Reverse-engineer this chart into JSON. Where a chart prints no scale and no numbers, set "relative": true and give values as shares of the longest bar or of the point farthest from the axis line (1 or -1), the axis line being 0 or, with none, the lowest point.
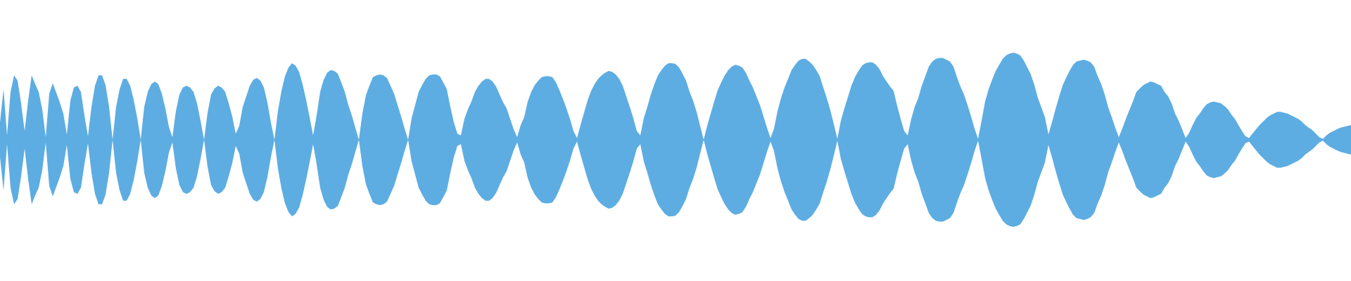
{
  "chart_data": {
    "type": "area",
    "relative": true,
    "categories": [
      null,
      null,
      null,
      null,
      null,
      null,
      null,
      null,
      null,
      null,
      null,
      null,
      null,
      null,
      null,
      null,
      null,
      null,
      null,
      null,
      null,
      null,
      null,
      null,
      null,
      null,
      null,
      null,
      null,
      null,
      null,
      null,
      null,
      null,
      null,
      null,
      null,
      null,
      null,
      null,
      null,
      null,
      null,
      null,
      null,
      null,
      null,
      null,
      null,
      null,
      null,
      null,
      null,
      null,
      null,
      null,
      null,
      null,
      null,
      null,
      null,
      null,
      null,
      null,
      null,
      null,
      null,
      null,
      null,
      null,
      null,
      null,
      null,
      null,
      null,
      null,
      null,
      null,
      null,
      null,
      null,
      null,
      null,
      null,
      null,
      null,
      null,
      null,
      null,
      null,
      null,
      null,
      null,
      null,
      null,
      null,
      null,
      null,
      null,
      null,
      null,
      null,
      null,
      null,
      null,
      null,
      null,
      null,
      null,
      null,
      null,
      null,
      null,
      null,
      null,
      null,
      null,
      null,
      null,
      null,
      null,
      null,
      null,
      null,
      null,
      null,
      null,
      null,
      null,
      null,
      null,
      null,
      null,
      null,
      null,
      null,
      null,
      null,
      null,
      null,
      null,
      null,
      null,
      null,
      null,
      null,
      null,
      null,
      null,
      null,
      null,
      null,
      null,
      null,
      null,
      null,
      null,
      null,
      null,
      null,
      null,
      null,
      null,
      null,
      null,
      null,
      null,
      null,
      null,
      null,
      null,
      null,
      null,
      null,
      null,
      null,
      null,
      null,
      null,
      null,
      null,
      null,
      null,
      null,
      null,
      null,
      null,
      null,
      null,
      null,
      null,
      null,
      null,
      null,
      null,
      null,
      null,
      null,
      null,
      null,
      null,
      null,
      null,
      null,
      null,
      null,
      null,
      null,
      null,
      null,
      null,
      null,
      null,
      null,
      null,
      null,
      null,
      null,
      null,
      null,
      null,
      null,
      null,
      null,
      null,
      null,
      null,
      null,
      null,
      null,
      null,
      null,
      null,
      null,
      null,
      null,
      null,
      null,
      null,
      null,
      null,
      null,
      null,
      null,
      null,
      null,
      null,
      null,
      null,
      null,
      null,
      null,
      null,
      null,
      null,
      null,
      null,
      null,
      null,
      null,
      null,
      null,
      null,
      null,
      null,
      null,
      null,
      null,
      null,
      null,
      null,
      null,
      null,
      null,
      null,
      null,
      null,
      null,
      null,
      null,
      null,
      null,
      null,
      null,
      null,
      null,
      null,
      null,
      null,
      null,
      null,
      null,
      null,
      null,
      null,
      null,
      null,
      null,
      null,
      null,
      null,
      null,
      null,
      null,
      null,
      null,
      null,
      null,
      null,
      null,
      null,
      null,
      null,
      null,
      null,
      null,
      null,
      null,
      null,
      null,
      null,
      null,
      null,
      null,
      null,
      null,
      null,
      null,
      null,
      null,
      null,
      null,
      null,
      null,
      null,
      null,
      null,
      null,
      null,
      null,
      null,
      null,
      null,
      null,
      null,
      null,
      null,
      null,
      null,
      null,
      null,
      null,
      null,
      null,
      null,
      null,
      null,
      null,
      null,
      null,
      null,
      null,
      null,
      null,
      null,
      null,
      null,
      null,
      null,
      null,
      null,
      null,
      null,
      null,
      null,
      null,
      null,
      null,
      null,
      null,
      null,
      null,
      null,
      null,
      null
    ],
    "series": [
      {
        "color": "#5dade2",
        "values": [
          0.2,
          0.58,
          0.05,
          0.55,
          0.74,
          0.68,
          0.42,
          0.1,
          0.45,
          0.74,
          0.64,
          0.55,
          0.35,
          0.03,
          0.53,
          0.65,
          0.54,
          0.43,
          0.3,
          0.06,
          0.45,
          0.6,
          0.62,
          0.55,
          0.28,
          0.04,
          0.38,
          0.62,
          0.74,
          0.74,
          0.63,
          0.38,
          0,
          0.38,
          0.58,
          0.7,
          0.7,
          0.62,
          0.46,
          0.25,
          0,
          0.38,
          0.55,
          0.64,
          0.67,
          0.64,
          0.53,
          0.36,
          0.15,
          0.03,
          0.33,
          0.52,
          0.6,
          0.62,
          0.6,
          0.55,
          0.42,
          0.22,
          0,
          0.31,
          0.52,
          0.59,
          0.62,
          0.6,
          0.55,
          0.42,
          0.27,
          0.07,
          0.16,
          0.38,
          0.5,
          0.62,
          0.69,
          0.71,
          0.68,
          0.6,
          0.43,
          0.2,
          0,
          0.33,
          0.56,
          0.73,
          0.83,
          0.88,
          0.85,
          0.78,
          0.64,
          0.46,
          0.26,
          0.05,
          0.28,
          0.55,
          0.69,
          0.77,
          0.8,
          0.79,
          0.76,
          0.66,
          0.55,
          0.4,
          0.28,
          0.14,
          0,
          0.3,
          0.51,
          0.62,
          0.72,
          0.74,
          0.75,
          0.74,
          0.71,
          0.62,
          0.53,
          0.4,
          0.27,
          0.13,
          0,
          0.25,
          0.4,
          0.55,
          0.63,
          0.7,
          0.74,
          0.75,
          0.75,
          0.73,
          0.66,
          0.58,
          0.38,
          0.2,
          0.07,
          0.05,
          0.24,
          0.35,
          0.44,
          0.55,
          0.62,
          0.67,
          0.7,
          0.7,
          0.67,
          0.61,
          0.52,
          0.43,
          0.36,
          0.24,
          0.12,
          0.03,
          0.17,
          0.26,
          0.44,
          0.55,
          0.63,
          0.68,
          0.72,
          0.73,
          0.73,
          0.72,
          0.66,
          0.57,
          0.47,
          0.36,
          0.24,
          0.1,
          0.02,
          0.17,
          0.31,
          0.45,
          0.56,
          0.64,
          0.7,
          0.74,
          0.77,
          0.79,
          0.78,
          0.75,
          0.7,
          0.62,
          0.5,
          0.38,
          0.25,
          0.1,
          0.05,
          0.25,
          0.38,
          0.52,
          0.64,
          0.74,
          0.8,
          0.85,
          0.88,
          0.88,
          0.87,
          0.83,
          0.76,
          0.68,
          0.55,
          0.45,
          0.32,
          0.16,
          0,
          0.16,
          0.3,
          0.44,
          0.57,
          0.66,
          0.74,
          0.8,
          0.84,
          0.86,
          0.85,
          0.83,
          0.77,
          0.68,
          0.6,
          0.5,
          0.4,
          0.27,
          0.14,
          0.02,
          0.13,
          0.33,
          0.48,
          0.6,
          0.7,
          0.8,
          0.86,
          0.91,
          0.93,
          0.93,
          0.9,
          0.86,
          0.8,
          0.73,
          0.6,
          0.48,
          0.34,
          0.18,
          0.01,
          0.22,
          0.36,
          0.49,
          0.62,
          0.72,
          0.79,
          0.85,
          0.88,
          0.89,
          0.89,
          0.86,
          0.81,
          0.73,
          0.67,
          0.61,
          0.56,
          0.39,
          0.24,
          0.1,
          0.05,
          0.24,
          0.38,
          0.48,
          0.62,
          0.73,
          0.84,
          0.9,
          0.93,
          0.94,
          0.94,
          0.92,
          0.9,
          0.84,
          0.72,
          0.61,
          0.52,
          0.4,
          0.27,
          0.13,
          0.01,
          0.22,
          0.44,
          0.58,
          0.69,
          0.79,
          0.86,
          0.93,
          0.97,
          0.99,
          1,
          0.99,
          0.97,
          0.91,
          0.83,
          0.75,
          0.63,
          0.48,
          0.37,
          0.26,
          0.06,
          0.2,
          0.35,
          0.49,
          0.62,
          0.71,
          0.79,
          0.86,
          0.9,
          0.91,
          0.92,
          0.91,
          0.89,
          0.84,
          0.73,
          0.64,
          0.52,
          0.37,
          0.26,
          0.14,
          0.03,
          0.13,
          0.24,
          0.34,
          0.44,
          0.55,
          0.59,
          0.63,
          0.65,
          0.67,
          0.66,
          0.64,
          0.62,
          0.55,
          0.5,
          0.42,
          0.3,
          0.22,
          0.12,
          0.02,
          0.08,
          0.17,
          0.25,
          0.3,
          0.36,
          0.41,
          0.43,
          0.44,
          0.43,
          0.42,
          0.39,
          0.35,
          0.29,
          0.24,
          0.17,
          0.1,
          0.04,
          0.02,
          0.07,
          0.12,
          0.17,
          0.21,
          0.25,
          0.28,
          0.3,
          0.32,
          0.32,
          0.31,
          0.3,
          0.28,
          0.26,
          0.24,
          0.21,
          0.17,
          0.14,
          0.11,
          0.07,
          0.03,
          0.01,
          0.05,
          0.08,
          0.1,
          0.12,
          0.14,
          0.15,
          0.16,
          0.17
        ]
      },
      {
        "color": "#5dade2",
        "values": [
          -0.2,
          -0.58,
          -0.05,
          -0.55,
          -0.74,
          -0.68,
          -0.42,
          -0.1,
          -0.45,
          -0.74,
          -0.64,
          -0.55,
          -0.35,
          -0.03,
          -0.53,
          -0.65,
          -0.54,
          -0.43,
          -0.3,
          -0.06,
          -0.45,
          -0.6,
          -0.62,
          -0.55,
          -0.28,
          -0.04,
          -0.38,
          -0.62,
          -0.74,
          -0.74,
          -0.63,
          -0.38,
          0,
          -0.38,
          -0.58,
          -0.7,
          -0.7,
          -0.62,
          -0.46,
          -0.25,
          0,
          -0.38,
          -0.55,
          -0.64,
          -0.67,
          -0.64,
          -0.53,
          -0.36,
          -0.15,
          -0.03,
          -0.33,
          -0.52,
          -0.6,
          -0.62,
          -0.6,
          -0.55,
          -0.42,
          -0.22,
          0,
          -0.31,
          -0.52,
          -0.59,
          -0.62,
          -0.6,
          -0.55,
          -0.42,
          -0.27,
          -0.07,
          -0.16,
          -0.38,
          -0.5,
          -0.62,
          -0.69,
          -0.71,
          -0.68,
          -0.6,
          -0.43,
          -0.2,
          0,
          -0.33,
          -0.56,
          -0.73,
          -0.83,
          -0.88,
          -0.85,
          -0.78,
          -0.64,
          -0.46,
          -0.26,
          -0.05,
          -0.28,
          -0.55,
          -0.69,
          -0.77,
          -0.8,
          -0.79,
          -0.76,
          -0.66,
          -0.55,
          -0.4,
          -0.28,
          -0.14,
          0,
          -0.3,
          -0.51,
          -0.62,
          -0.72,
          -0.74,
          -0.75,
          -0.74,
          -0.71,
          -0.62,
          -0.53,
          -0.4,
          -0.27,
          -0.13,
          0,
          -0.25,
          -0.4,
          -0.55,
          -0.63,
          -0.7,
          -0.74,
          -0.75,
          -0.75,
          -0.73,
          -0.66,
          -0.58,
          -0.38,
          -0.2,
          -0.07,
          -0.05,
          -0.24,
          -0.35,
          -0.44,
          -0.55,
          -0.62,
          -0.67,
          -0.7,
          -0.7,
          -0.67,
          -0.61,
          -0.52,
          -0.43,
          -0.36,
          -0.24,
          -0.12,
          -0.03,
          -0.17,
          -0.26,
          -0.44,
          -0.55,
          -0.63,
          -0.68,
          -0.72,
          -0.73,
          -0.73,
          -0.72,
          -0.66,
          -0.57,
          -0.47,
          -0.36,
          -0.24,
          -0.1,
          -0.02,
          -0.17,
          -0.31,
          -0.45,
          -0.56,
          -0.64,
          -0.7,
          -0.74,
          -0.77,
          -0.79,
          -0.78,
          -0.75,
          -0.7,
          -0.62,
          -0.5,
          -0.38,
          -0.25,
          -0.1,
          -0.05,
          -0.25,
          -0.38,
          -0.52,
          -0.64,
          -0.74,
          -0.8,
          -0.85,
          -0.88,
          -0.88,
          -0.87,
          -0.83,
          -0.76,
          -0.68,
          -0.55,
          -0.45,
          -0.32,
          -0.16,
          0,
          -0.16,
          -0.3,
          -0.44,
          -0.57,
          -0.66,
          -0.74,
          -0.8,
          -0.84,
          -0.86,
          -0.85,
          -0.83,
          -0.77,
          -0.68,
          -0.6,
          -0.5,
          -0.4,
          -0.27,
          -0.14,
          -0.02,
          -0.13,
          -0.33,
          -0.48,
          -0.6,
          -0.7,
          -0.8,
          -0.86,
          -0.91,
          -0.93,
          -0.93,
          -0.9,
          -0.86,
          -0.8,
          -0.73,
          -0.6,
          -0.48,
          -0.34,
          -0.18,
          -0.01,
          -0.22,
          -0.36,
          -0.49,
          -0.62,
          -0.72,
          -0.79,
          -0.85,
          -0.88,
          -0.89,
          -0.89,
          -0.86,
          -0.81,
          -0.73,
          -0.67,
          -0.61,
          -0.56,
          -0.39,
          -0.24,
          -0.1,
          -0.05,
          -0.24,
          -0.38,
          -0.48,
          -0.62,
          -0.73,
          -0.84,
          -0.9,
          -0.93,
          -0.94,
          -0.94,
          -0.92,
          -0.9,
          -0.84,
          -0.72,
          -0.61,
          -0.52,
          -0.4,
          -0.27,
          -0.13,
          -0.01,
          -0.22,
          -0.44,
          -0.58,
          -0.69,
          -0.79,
          -0.86,
          -0.93,
          -0.97,
          -0.99,
          -1,
          -0.99,
          -0.97,
          -0.91,
          -0.83,
          -0.75,
          -0.63,
          -0.48,
          -0.37,
          -0.26,
          -0.06,
          -0.2,
          -0.35,
          -0.49,
          -0.62,
          -0.71,
          -0.79,
          -0.86,
          -0.9,
          -0.91,
          -0.92,
          -0.91,
          -0.89,
          -0.84,
          -0.73,
          -0.64,
          -0.52,
          -0.37,
          -0.26,
          -0.14,
          -0.03,
          -0.13,
          -0.24,
          -0.34,
          -0.44,
          -0.55,
          -0.59,
          -0.63,
          -0.65,
          -0.67,
          -0.66,
          -0.64,
          -0.62,
          -0.55,
          -0.5,
          -0.42,
          -0.3,
          -0.22,
          -0.12,
          -0.02,
          -0.08,
          -0.17,
          -0.25,
          -0.3,
          -0.36,
          -0.41,
          -0.43,
          -0.44,
          -0.43,
          -0.42,
          -0.39,
          -0.35,
          -0.29,
          -0.24,
          -0.17,
          -0.1,
          -0.04,
          -0.02,
          -0.07,
          -0.12,
          -0.17,
          -0.21,
          -0.25,
          -0.28,
          -0.3,
          -0.32,
          -0.32,
          -0.31,
          -0.3,
          -0.28,
          -0.26,
          -0.24,
          -0.21,
          -0.17,
          -0.14,
          -0.11,
          -0.07,
          -0.03,
          -0.01,
          -0.05,
          -0.08,
          -0.1,
          -0.12,
          -0.14,
          -0.15,
          -0.16,
          -0.17
        ]
      }
    ]
  }
}
